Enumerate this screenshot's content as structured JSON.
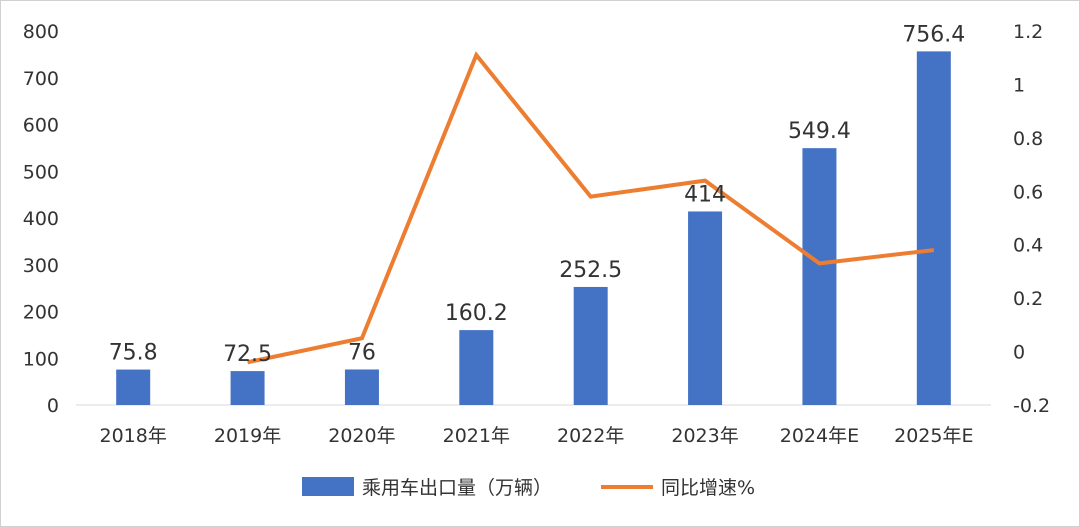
{
  "chart_data": {
    "type": "bar",
    "categories": [
      "2018年",
      "2019年",
      "2020年",
      "2021年",
      "2022年",
      "2023年",
      "2024年E",
      "2025年E"
    ],
    "series": [
      {
        "name": "乘用车出口量（万辆）",
        "type": "bar",
        "axis": "left",
        "values": [
          75.8,
          72.5,
          76,
          160.2,
          252.5,
          414,
          549.4,
          756.4
        ],
        "labels": [
          "75.8",
          "72.5",
          "76",
          "160.2",
          "252.5",
          "414",
          "549.4",
          "756.4"
        ],
        "color": "#4472C4"
      },
      {
        "name": "同比增速%",
        "type": "line",
        "axis": "right",
        "values": [
          null,
          -0.04,
          0.05,
          1.11,
          0.58,
          0.64,
          0.33,
          0.38
        ],
        "color": "#ED7D31"
      }
    ],
    "y_left": {
      "min": 0,
      "max": 800,
      "step": 100,
      "ticks": [
        "0",
        "100",
        "200",
        "300",
        "400",
        "500",
        "600",
        "700",
        "800"
      ]
    },
    "y_right": {
      "min": -0.2,
      "max": 1.2,
      "step": 0.2,
      "ticks": [
        "-0.2",
        "0",
        "0.2",
        "0.4",
        "0.6",
        "0.8",
        "1",
        "1.2"
      ]
    },
    "grid": false,
    "legend": "bottom"
  }
}
